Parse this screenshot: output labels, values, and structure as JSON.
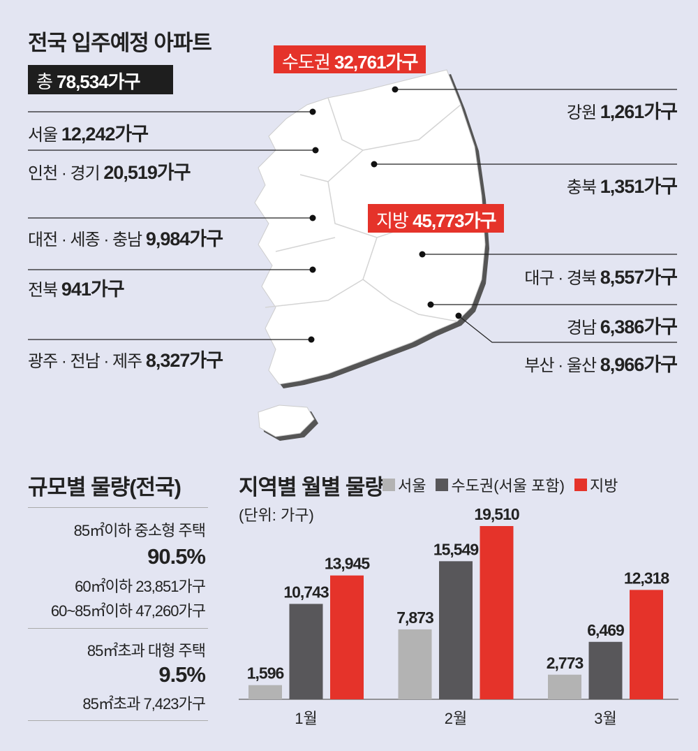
{
  "map": {
    "title": "전국 입주예정 아파트",
    "total": {
      "label": "총",
      "value": "78,534가구"
    },
    "capital": {
      "label": "수도권",
      "value": "32,761가구"
    },
    "provinces": {
      "label": "지방",
      "value": "45,773가구"
    },
    "regions_left": [
      {
        "name": "서울",
        "value": "12,242가구"
      },
      {
        "name": "인천 · 경기",
        "value": "20,519가구"
      },
      {
        "name": "대전 · 세종 · 충남",
        "value": "9,984가구"
      },
      {
        "name": "전북",
        "value": "941가구"
      },
      {
        "name": "광주 · 전남 · 제주",
        "value": "8,327가구"
      }
    ],
    "regions_right": [
      {
        "name": "강원",
        "value": "1,261가구"
      },
      {
        "name": "충북",
        "value": "1,351가구"
      },
      {
        "name": "대구 · 경북",
        "value": "8,557가구"
      },
      {
        "name": "경남",
        "value": "6,386가구"
      },
      {
        "name": "부산 · 울산",
        "value": "8,966가구"
      }
    ]
  },
  "size": {
    "title": "규모별 물량(전국)",
    "small": {
      "label": "85㎡이하 중소형 주택",
      "pct": "90.5%",
      "rows": [
        "60㎡이하 23,851가구",
        "60~85㎡이하 47,260가구"
      ]
    },
    "large": {
      "label": "85㎡초과 대형 주택",
      "pct": "9.5%",
      "rows": [
        "85㎡초과 7,423가구"
      ]
    }
  },
  "colors": {
    "seoul": "#b3b3b3",
    "capital": "#58575a",
    "provinces": "#e5332a",
    "background": "#e3e5f2"
  },
  "chart_data": {
    "type": "bar",
    "title": "지역별 월별 물량",
    "subtitle": "(단위: 가구)",
    "categories": [
      "1월",
      "2월",
      "3월"
    ],
    "series": [
      {
        "name": "서울",
        "values": [
          1596,
          7873,
          2773
        ],
        "labels": [
          "1,596",
          "7,873",
          "2,773"
        ]
      },
      {
        "name": "수도권(서울 포함)",
        "values": [
          10743,
          15549,
          6469
        ],
        "labels": [
          "10,743",
          "15,549",
          "6,469"
        ]
      },
      {
        "name": "지방",
        "values": [
          13945,
          19510,
          12318
        ],
        "labels": [
          "13,945",
          "19,510",
          "12,318"
        ]
      }
    ],
    "legend": "top-right",
    "ylim": [
      0,
      19510
    ],
    "grid": false
  }
}
